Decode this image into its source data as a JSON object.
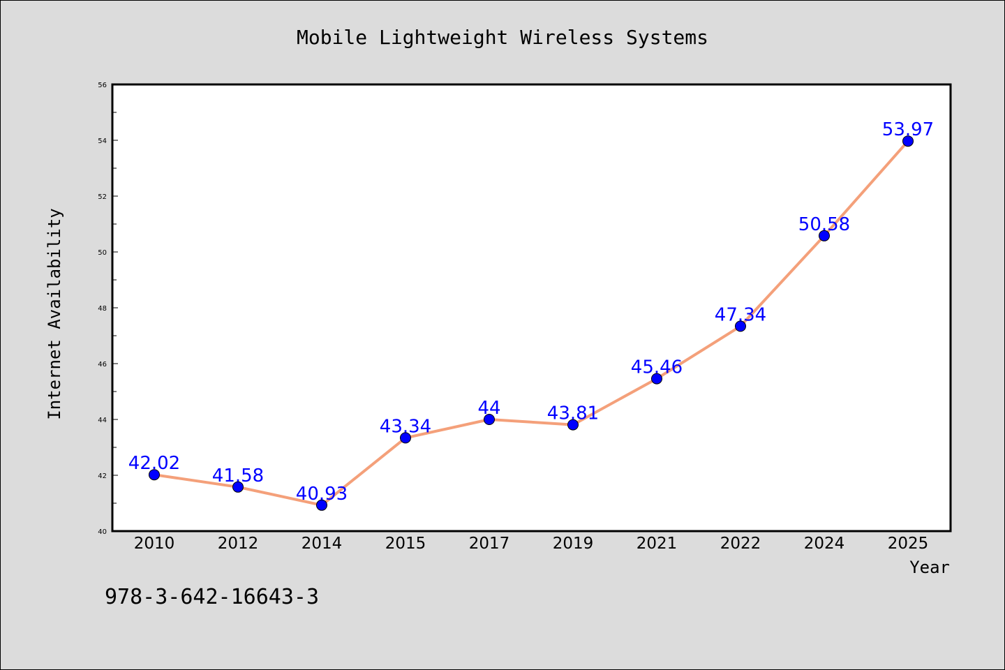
{
  "chart_data": {
    "type": "line",
    "title": "Mobile Lightweight Wireless Systems",
    "xlabel": "Year",
    "ylabel": "Internet Availability",
    "categories": [
      "2010",
      "2012",
      "2014",
      "2015",
      "2017",
      "2019",
      "2021",
      "2022",
      "2024",
      "2025"
    ],
    "values": [
      42.02,
      41.58,
      40.93,
      43.34,
      44,
      43.81,
      45.46,
      47.34,
      50.58,
      53.97
    ],
    "data_labels": [
      "42.02",
      "41.58",
      "40.93",
      "43.34",
      "44",
      "43.81",
      "45.46",
      "47.34",
      "50.58",
      "53.97"
    ],
    "ylim": [
      40,
      56
    ],
    "yticks": [
      40,
      42,
      44,
      46,
      48,
      50,
      52,
      54,
      56
    ],
    "grid": false,
    "legend": "none",
    "colors": {
      "line": "#f4a07a",
      "marker": "#0000ff",
      "label": "#0000ff",
      "background": "#dcdcdc",
      "plot_background": "#ffffff"
    }
  },
  "footer": {
    "code": "978-3-642-16643-3"
  }
}
